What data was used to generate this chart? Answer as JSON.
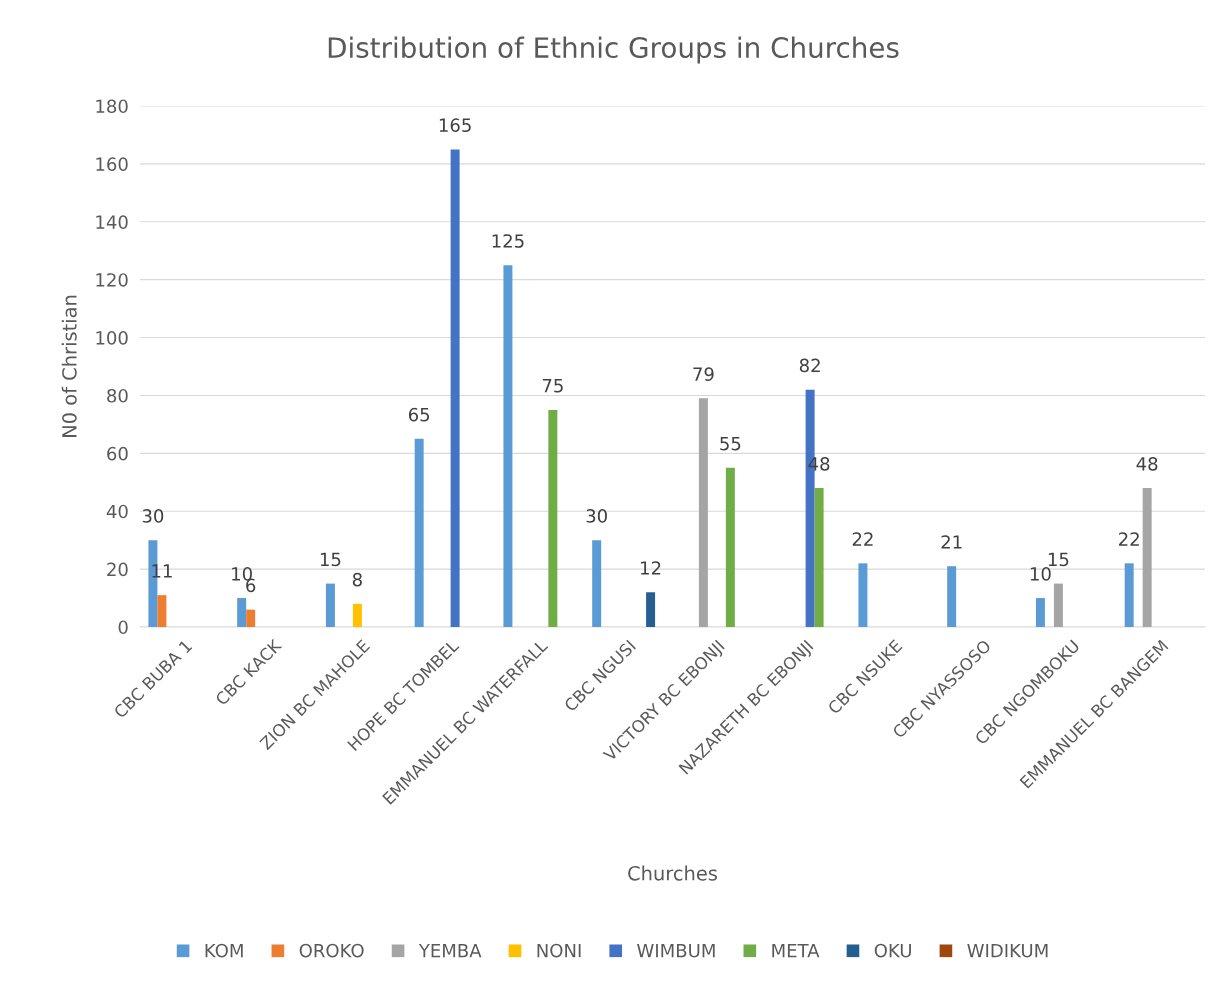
{
  "chart_data": {
    "type": "bar",
    "title": "Distribution of Ethnic Groups in Churches",
    "xlabel": "Churches",
    "ylabel": "N0 of Christian",
    "categories": [
      "CBC BUBA 1",
      "CBC KACK",
      "ZION BC MAHOLE",
      "HOPE BC TOMBEL",
      "EMMANUEL BC WATERFALL",
      "CBC NGUSI",
      "VICTORY BC EBONJI",
      "NAZARETH BC EBONJI",
      "CBC NSUKE",
      "CBC NYASSOSO",
      "CBC NGOMBOKU",
      "EMMANUEL BC BANGEM"
    ],
    "series": [
      {
        "name": "KOM",
        "color": "#5b9bd5",
        "values": [
          30,
          10,
          15,
          65,
          125,
          30,
          null,
          null,
          22,
          21,
          10,
          22
        ]
      },
      {
        "name": "OROKO",
        "color": "#ed7d31",
        "values": [
          11,
          6,
          null,
          null,
          null,
          null,
          null,
          null,
          null,
          null,
          null,
          null
        ]
      },
      {
        "name": "YEMBA",
        "color": "#a5a5a5",
        "values": [
          null,
          null,
          null,
          null,
          null,
          null,
          79,
          null,
          null,
          null,
          15,
          48
        ]
      },
      {
        "name": "NONI",
        "color": "#ffc000",
        "values": [
          null,
          null,
          8,
          null,
          null,
          null,
          null,
          null,
          null,
          null,
          null,
          null
        ]
      },
      {
        "name": "WIMBUM",
        "color": "#4472c4",
        "values": [
          null,
          null,
          null,
          165,
          null,
          null,
          null,
          82,
          null,
          null,
          null,
          null
        ]
      },
      {
        "name": "META",
        "color": "#70ad47",
        "values": [
          null,
          null,
          null,
          null,
          75,
          null,
          55,
          48,
          null,
          null,
          null,
          null
        ]
      },
      {
        "name": "OKU",
        "color": "#255e91",
        "values": [
          null,
          null,
          null,
          null,
          null,
          12,
          null,
          null,
          null,
          null,
          null,
          null
        ]
      },
      {
        "name": "WIDIKUM",
        "color": "#9e480e",
        "values": [
          null,
          null,
          null,
          null,
          null,
          null,
          null,
          null,
          null,
          null,
          null,
          null
        ]
      }
    ],
    "ylim": [
      0,
      180
    ],
    "yticks": [
      0,
      20,
      40,
      60,
      80,
      100,
      120,
      140,
      160,
      180
    ],
    "grid": "y",
    "legend": "bottom",
    "data_labels": true
  }
}
